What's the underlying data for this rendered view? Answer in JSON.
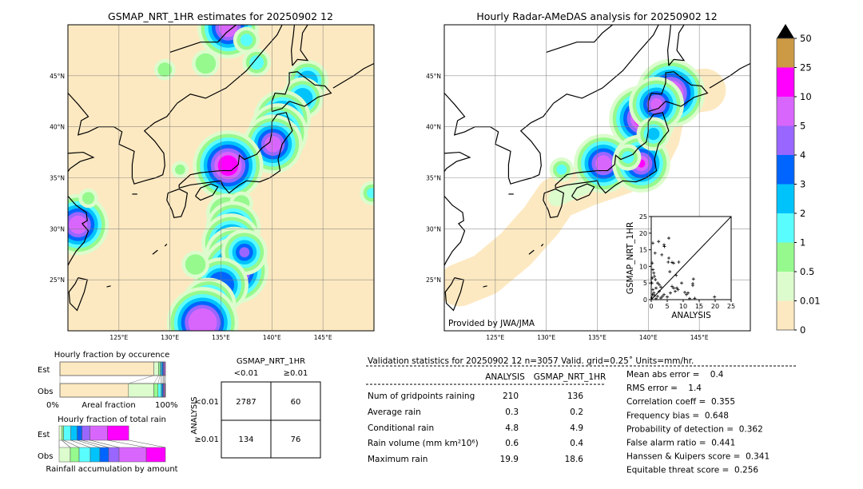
{
  "left_map": {
    "title": "GSMAP_NRT_1HR estimates for 20250902 12"
  },
  "right_map": {
    "title": "Hourly Radar-AMeDAS analysis for 20250902 12",
    "credit": "Provided by JWA/JMA"
  },
  "map_axes": {
    "lon_ticks": [
      "125°E",
      "130°E",
      "135°E",
      "140°E",
      "145°E"
    ],
    "lat_ticks": [
      "45°N",
      "40°N",
      "35°N",
      "30°N",
      "25°N"
    ],
    "lon_values": [
      125,
      130,
      135,
      140,
      145
    ],
    "lat_values": [
      45,
      40,
      35,
      30,
      25
    ],
    "lon_range": [
      120,
      150
    ],
    "lat_range": [
      20,
      50
    ]
  },
  "colorbar": {
    "labels": [
      "0",
      "0.01",
      "0.5",
      "1",
      "2",
      "3",
      "4",
      "5",
      "10",
      "25",
      "50"
    ],
    "colors": [
      "#fde9c1",
      "#dcfccd",
      "#96f98e",
      "#5afdfd",
      "#00c3fc",
      "#0065ff",
      "#9966ff",
      "#d966fc",
      "#ff00ff",
      "#cc9944"
    ],
    "extend": "max"
  },
  "gsmap_rain": [
    {
      "lon": 135.7,
      "lat": 49.7,
      "r": 0.9,
      "level": 7
    },
    {
      "lon": 137.5,
      "lat": 48.5,
      "r": 0.6,
      "level": 3
    },
    {
      "lon": 133.5,
      "lat": 46.2,
      "r": 1.0,
      "level": 2
    },
    {
      "lon": 129.5,
      "lat": 45.6,
      "r": 0.7,
      "level": 2
    },
    {
      "lon": 138.5,
      "lat": 46.3,
      "r": 0.7,
      "level": 3
    },
    {
      "lon": 143.5,
      "lat": 44.5,
      "r": 1.0,
      "level": 4
    },
    {
      "lon": 143.0,
      "lat": 42.8,
      "r": 1.0,
      "level": 4
    },
    {
      "lon": 141.0,
      "lat": 40.8,
      "r": 0.7,
      "level": 7
    },
    {
      "lon": 140.6,
      "lat": 39.4,
      "r": 0.8,
      "level": 7
    },
    {
      "lon": 140.1,
      "lat": 38.3,
      "r": 0.8,
      "level": 7
    },
    {
      "lon": 135.7,
      "lat": 36.2,
      "r": 1.0,
      "level": 8
    },
    {
      "lon": 131.0,
      "lat": 35.8,
      "r": 0.5,
      "level": 2
    },
    {
      "lon": 135.5,
      "lat": 31.5,
      "r": 1.6,
      "level": 2
    },
    {
      "lon": 137.0,
      "lat": 32.5,
      "r": 0.8,
      "level": 2
    },
    {
      "lon": 136.2,
      "lat": 30.0,
      "r": 0.6,
      "level": 7
    },
    {
      "lon": 136.0,
      "lat": 28.6,
      "r": 0.8,
      "level": 7
    },
    {
      "lon": 136.3,
      "lat": 27.3,
      "r": 0.8,
      "level": 7
    },
    {
      "lon": 136.4,
      "lat": 25.9,
      "r": 0.8,
      "level": 8
    },
    {
      "lon": 137.3,
      "lat": 27.7,
      "r": 0.5,
      "level": 6
    },
    {
      "lon": 135.0,
      "lat": 24.5,
      "r": 1.3,
      "level": 5
    },
    {
      "lon": 133.8,
      "lat": 22.5,
      "r": 1.3,
      "level": 5
    },
    {
      "lon": 133.2,
      "lat": 20.8,
      "r": 1.4,
      "level": 7
    },
    {
      "lon": 132.5,
      "lat": 26.5,
      "r": 1.0,
      "level": 2
    },
    {
      "lon": 121.0,
      "lat": 30.4,
      "r": 0.9,
      "level": 7
    },
    {
      "lon": 122.0,
      "lat": 33.0,
      "r": 0.6,
      "level": 2
    },
    {
      "lon": 149.8,
      "lat": 33.5,
      "r": 0.5,
      "level": 3
    }
  ],
  "analysis_rain": [
    {
      "lon": 135.6,
      "lat": 36.4,
      "r": 0.8,
      "level": 7
    },
    {
      "lon": 139.4,
      "lat": 40.8,
      "r": 0.8,
      "level": 8
    },
    {
      "lon": 142.2,
      "lat": 43.3,
      "r": 0.9,
      "level": 8
    },
    {
      "lon": 140.8,
      "lat": 42.2,
      "r": 0.6,
      "level": 7
    },
    {
      "lon": 139.3,
      "lat": 36.4,
      "r": 0.4,
      "level": 8
    },
    {
      "lon": 140.5,
      "lat": 39.3,
      "r": 0.6,
      "level": 4
    },
    {
      "lon": 138.0,
      "lat": 37.0,
      "r": 0.6,
      "level": 3
    },
    {
      "lon": 131.5,
      "lat": 35.8,
      "r": 0.5,
      "level": 3
    }
  ],
  "occurrence": {
    "title": "Hourly fraction by occurence",
    "rows": [
      "Est",
      "Obs"
    ],
    "xlabel_left": "0%",
    "xlabel_mid": "Areal fraction",
    "xlabel_right": "100%",
    "est": [
      0.89,
      0.045,
      0.015,
      0.01,
      0.01,
      0.01,
      0.01,
      0.01,
      0.0
    ],
    "obs": [
      0.65,
      0.24,
      0.04,
      0.03,
      0.01,
      0.01,
      0.005,
      0.01,
      0.005
    ]
  },
  "total_rain": {
    "title": "Hourly fraction of total rain",
    "rows": [
      "Est",
      "Obs"
    ],
    "xlabel": "Rainfall accumulation by amount",
    "est": [
      0.025,
      0.017,
      0.068,
      0.06,
      0.045,
      0.075,
      0.165,
      0.2
    ],
    "obs": [
      0.105,
      0.083,
      0.105,
      0.09,
      0.083,
      0.098,
      0.256,
      0.18
    ]
  },
  "contingency": {
    "col_title": "GSMAP_NRT_1HR",
    "col_labels": [
      "<0.01",
      "≥0.01"
    ],
    "row_title": "ANALYSIS",
    "row_labels": [
      "<0.01",
      "≥0.01"
    ],
    "cells": [
      [
        "2787",
        "60"
      ],
      [
        "134",
        "76"
      ]
    ]
  },
  "stats": {
    "header": "Validation statistics for 20250902 12  n=3057 Valid. grid=0.25˚ Units=mm/hr.",
    "columns": [
      "ANALYSIS",
      "GSMAP_NRT_1HR"
    ],
    "rows": [
      {
        "label": "Num of gridpoints raining",
        "analysis": "210",
        "gsmap": "136"
      },
      {
        "label": "Average rain",
        "analysis": "0.3",
        "gsmap": "0.2"
      },
      {
        "label": "Conditional rain",
        "analysis": "4.8",
        "gsmap": "4.9"
      },
      {
        "label": "Rain volume (mm km²10⁶)",
        "analysis": "0.6",
        "gsmap": "0.4"
      },
      {
        "label": "Maximum rain",
        "analysis": "19.9",
        "gsmap": "18.6"
      }
    ],
    "scores": [
      "Mean abs error =    0.4",
      "RMS error =    1.4",
      "Correlation coeff =  0.355",
      "Frequency bias =  0.648",
      "Probability of detection =  0.362",
      "False alarm ratio =  0.441",
      "Hanssen & Kuipers score =  0.341",
      "Equitable threat score =  0.256"
    ]
  },
  "chart_data": {
    "type": "scatter",
    "xlabel": "ANALYSIS",
    "ylabel": "GSMAP_NRT_1HR",
    "xlim": [
      0,
      25
    ],
    "ylim": [
      0,
      25
    ],
    "x_ticks": [
      "0",
      "5",
      "10",
      "15",
      "20",
      "25"
    ],
    "y_ticks": [
      "0",
      "5",
      "10",
      "15",
      "20",
      "25"
    ],
    "points": [
      [
        0.5,
        17
      ],
      [
        1.2,
        14
      ],
      [
        2.3,
        17.5
      ],
      [
        4,
        16.5
      ],
      [
        4.1,
        16
      ],
      [
        5.5,
        18.5
      ],
      [
        3.3,
        13.5
      ],
      [
        5.5,
        12.5
      ],
      [
        5.3,
        11.3
      ],
      [
        6.5,
        11.2
      ],
      [
        7,
        11
      ],
      [
        8.6,
        11.3
      ],
      [
        5.8,
        8.4
      ],
      [
        0.3,
        11
      ],
      [
        0.5,
        9
      ],
      [
        0.8,
        8
      ],
      [
        1,
        7
      ],
      [
        1.3,
        6
      ],
      [
        2,
        5
      ],
      [
        2.5,
        4.5
      ],
      [
        3,
        3.8
      ],
      [
        1.5,
        3.5
      ],
      [
        0.5,
        3
      ],
      [
        0.8,
        2
      ],
      [
        1,
        1.2
      ],
      [
        2,
        1
      ],
      [
        3,
        0.5
      ],
      [
        4,
        1.5
      ],
      [
        5,
        0.8
      ],
      [
        6,
        2
      ],
      [
        6.5,
        4
      ],
      [
        7,
        3.5
      ],
      [
        7.5,
        2.5
      ],
      [
        8,
        3.5
      ],
      [
        8.4,
        3
      ],
      [
        9.5,
        5
      ],
      [
        7.8,
        7.3
      ],
      [
        10.5,
        2.2
      ],
      [
        11,
        1.5
      ],
      [
        11.5,
        2
      ],
      [
        13,
        4.8
      ],
      [
        13.2,
        6.2
      ],
      [
        13,
        4.3
      ],
      [
        13.6,
        0.4
      ],
      [
        19.8,
        0.8
      ],
      [
        12,
        0.3
      ],
      [
        0.2,
        0.5
      ],
      [
        0.4,
        1.5
      ],
      [
        1.5,
        0.3
      ],
      [
        2.5,
        2.5
      ],
      [
        3.5,
        1
      ],
      [
        0.2,
        5
      ],
      [
        0.3,
        6.5
      ]
    ]
  }
}
